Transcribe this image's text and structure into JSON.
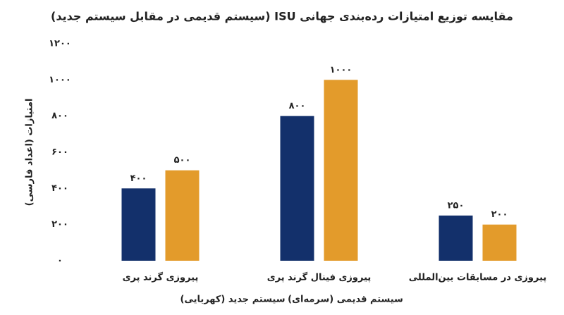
{
  "chart_data": {
    "type": "bar",
    "title": "مقایسه توزیع امتیازات رده‌بندی جهانی ISU (سیستم قدیمی در مقابل سیستم جدید)",
    "y_label": "امتیازات (اعداد فارسی)",
    "categories": [
      "پیروزی گرند پری",
      "پیروزی فینال گرند پری",
      "پیروزی در مسابقات بین‌المللی"
    ],
    "series": [
      {
        "name": "سیستم قدیمی (سرمه‌ای)",
        "color": "#13306b",
        "values": [
          400,
          800,
          250
        ],
        "value_labels": [
          "۴۰۰",
          "۸۰۰",
          "۲۵۰"
        ]
      },
      {
        "name": "سیستم جدید (کهربایی)",
        "color": "#e39b2b",
        "values": [
          500,
          1000,
          200
        ],
        "value_labels": [
          "۵۰۰",
          "۱۰۰۰",
          "۲۰۰"
        ]
      }
    ],
    "ylim": [
      0,
      1200
    ],
    "yticks": [
      {
        "value": 0,
        "label": "۰"
      },
      {
        "value": 200,
        "label": "۲۰۰"
      },
      {
        "value": 400,
        "label": "۴۰۰"
      },
      {
        "value": 600,
        "label": "۶۰۰"
      },
      {
        "value": 800,
        "label": "۸۰۰"
      },
      {
        "value": 1000,
        "label": "۱۰۰۰"
      },
      {
        "value": 1200,
        "label": "۱۲۰۰"
      }
    ],
    "grid": false
  }
}
